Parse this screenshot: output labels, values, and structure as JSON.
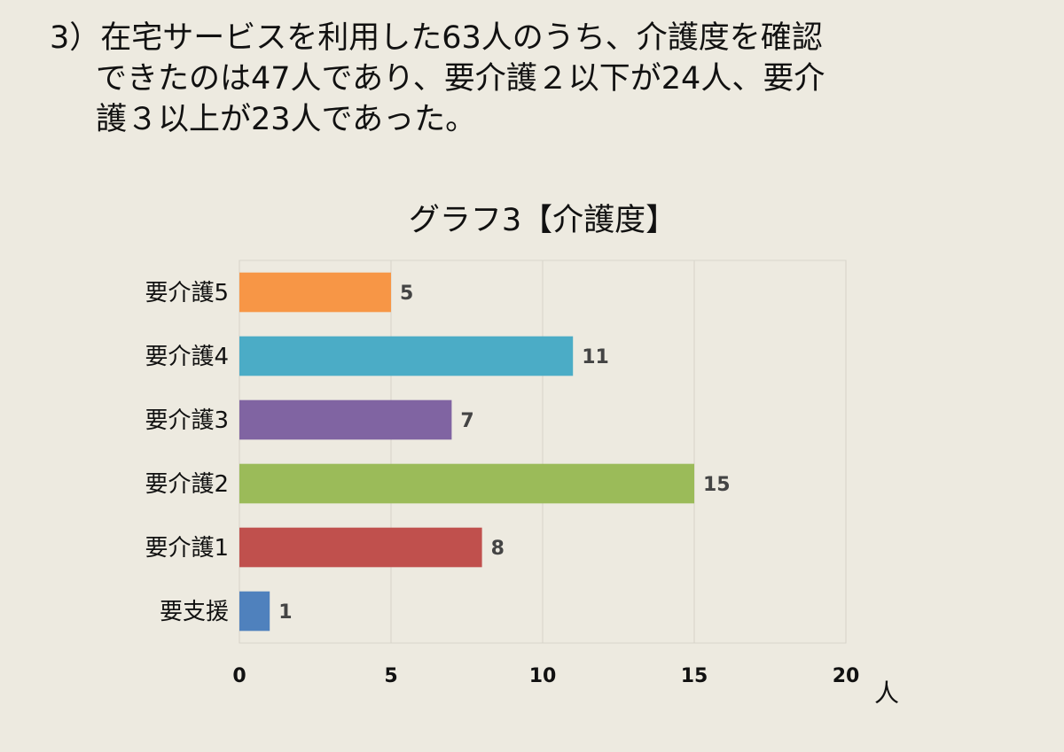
{
  "heading": {
    "line1": "3）在宅サービスを利用した63人のうち、介護度を確認",
    "line2": "できたのは47人であり、要介護２以下が24人、要介",
    "line3": "護３以上が23人であった。"
  },
  "chart_data": {
    "type": "bar",
    "orientation": "horizontal",
    "title": "グラフ3【介護度】",
    "categories": [
      "要介護5",
      "要介護4",
      "要介護3",
      "要介護2",
      "要介護1",
      "要支援"
    ],
    "values": [
      5,
      11,
      7,
      15,
      8,
      1
    ],
    "colors": [
      "#f79646",
      "#4bacc6",
      "#8064a2",
      "#9bbb59",
      "#c0504d",
      "#4f81bd"
    ],
    "xlim": [
      0,
      20
    ],
    "xticks": [
      "0",
      "5",
      "10",
      "15",
      "20"
    ],
    "xunit": "人",
    "grid": true,
    "legend": "none"
  }
}
